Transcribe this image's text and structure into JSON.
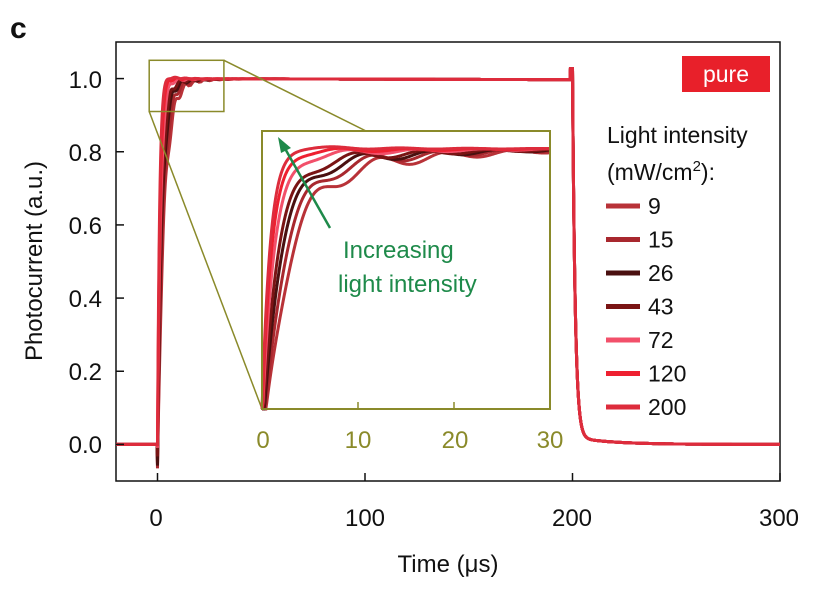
{
  "panel_label": "c",
  "badge": {
    "text": "pure",
    "color": "#e8202a"
  },
  "annotation": {
    "line1": "Increasing",
    "line2": "light intensity",
    "color": "#1e8a4a"
  },
  "legend": {
    "title_line1": "Light intensity",
    "title_line2_prefix": "(mW/cm",
    "title_line2_sup": "2",
    "title_line2_suffix": "):"
  },
  "chart_data": {
    "type": "line",
    "title": "",
    "xlabel": "Time (μs)",
    "ylabel": "Photocurrent (a.u.)",
    "xlim": [
      -20,
      300
    ],
    "ylim": [
      -0.1,
      1.1
    ],
    "xticks": [
      "0",
      "100",
      "200",
      "300"
    ],
    "yticks": [
      "0.0",
      "0.2",
      "0.4",
      "0.6",
      "0.8",
      "1.0"
    ],
    "grid": false,
    "legend_position": "right",
    "series": [
      {
        "name": "9",
        "color": "#b83238",
        "rise_tau": 3.0,
        "osc": 0.09
      },
      {
        "name": "15",
        "color": "#a8282e",
        "rise_tau": 2.6,
        "osc": 0.07
      },
      {
        "name": "26",
        "color": "#4a1010",
        "rise_tau": 2.2,
        "osc": 0.06
      },
      {
        "name": "43",
        "color": "#7a1414",
        "rise_tau": 1.9,
        "osc": 0.05
      },
      {
        "name": "72",
        "color": "#f2506a",
        "rise_tau": 1.5,
        "osc": 0.03
      },
      {
        "name": "120",
        "color": "#ee2030",
        "rise_tau": 1.2,
        "osc": 0.02
      },
      {
        "name": "200",
        "color": "#dd2c3c",
        "rise_tau": 1.0,
        "osc": 0.01
      }
    ],
    "pulse": {
      "on_x": 0,
      "off_x": 200,
      "high_y": 1.0,
      "low_y": 0.0
    },
    "inset": {
      "xlim": [
        0,
        30
      ],
      "xticks": [
        "0",
        "10",
        "20",
        "30"
      ],
      "zoom_box_x": [
        -4,
        32
      ],
      "zoom_box_y": [
        0.91,
        1.05
      ],
      "frame_color": "#8a8a2a"
    }
  }
}
